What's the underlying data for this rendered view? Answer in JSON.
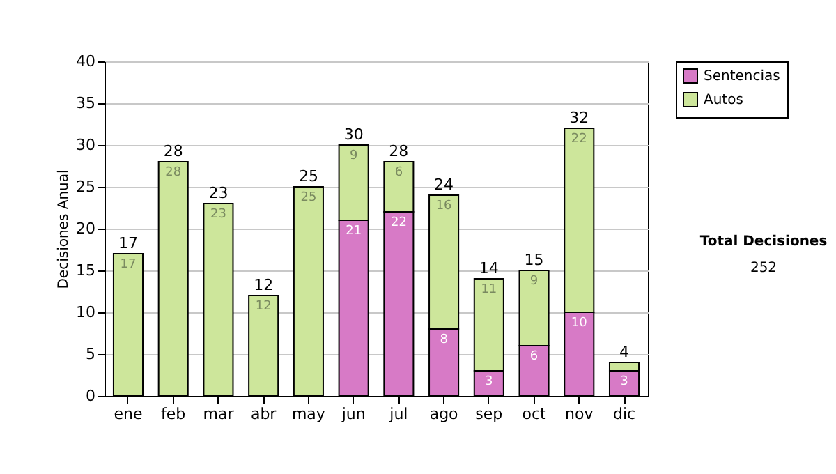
{
  "chart_data": {
    "type": "bar",
    "stacked": true,
    "ylabel": "Decisiones Anual",
    "categories": [
      "ene",
      "feb",
      "mar",
      "abr",
      "may",
      "jun",
      "jul",
      "ago",
      "sep",
      "oct",
      "nov",
      "dic"
    ],
    "series": [
      {
        "name": "Sentencias",
        "color": "#d77ac6",
        "values": [
          null,
          null,
          null,
          null,
          null,
          21,
          22,
          8,
          3,
          6,
          10,
          3
        ],
        "value_labels": [
          null,
          null,
          null,
          null,
          null,
          "21",
          "22",
          "8",
          "3",
          "6",
          "10",
          "3"
        ]
      },
      {
        "name": "Autos",
        "color": "#cde69b",
        "values": [
          17,
          28,
          23,
          12,
          25,
          9,
          6,
          16,
          11,
          9,
          22,
          1
        ],
        "value_labels": [
          "17",
          "28",
          "23",
          "12",
          "25",
          "9",
          "6",
          "16",
          "11",
          "9",
          "22",
          null
        ]
      }
    ],
    "totals": [
      "17",
      "28",
      "23",
      "12",
      "25",
      "30",
      "28",
      "24",
      "14",
      "15",
      "32",
      "4"
    ],
    "ylim": [
      0,
      40
    ],
    "yticks": [
      0,
      5,
      10,
      15,
      20,
      25,
      30,
      35,
      40
    ],
    "grid": "y",
    "legend": "right",
    "annotations": [
      "Total Decisiones",
      "252"
    ]
  }
}
